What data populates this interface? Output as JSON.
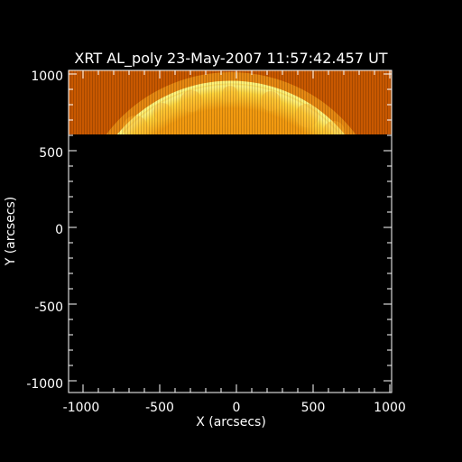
{
  "figure": {
    "title": "XRT AL_poly 23-May-2007 11:57:42.457 UT",
    "xlabel": "X (arcsecs)",
    "ylabel": "Y (arcsecs)",
    "x_ticks": [
      "-1000",
      "-500",
      "0",
      "500",
      "1000"
    ],
    "y_ticks": [
      "1000",
      "500",
      "0",
      "-500",
      "-1000"
    ],
    "colors": {
      "background": "#000000",
      "axes": "#ffffff",
      "image_dark": "#c85a00",
      "image_mid": "#e58a05",
      "image_bright": "#ffe860"
    }
  },
  "image": {
    "x_range_arcsec": [
      -1050,
      1050
    ],
    "y_range_arcsec": [
      -1050,
      1050
    ],
    "filled_y_range_arcsec": [
      600,
      1050
    ],
    "disk_radius_arcsec": 950,
    "content": "partial frame: solar limb arc in top band, remainder black"
  }
}
